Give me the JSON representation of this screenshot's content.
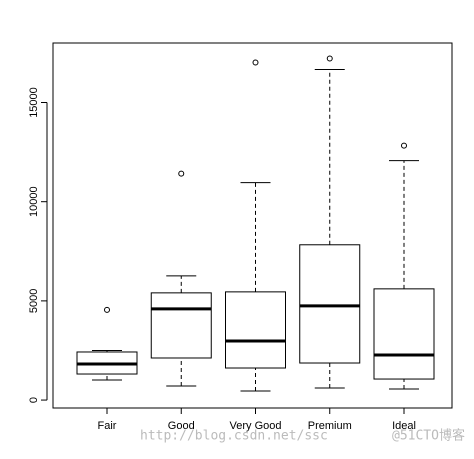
{
  "chart_data": {
    "type": "boxplot",
    "categories": [
      "Fair",
      "Good",
      "Very Good",
      "Premium",
      "Ideal"
    ],
    "boxes": [
      {
        "min": 1010,
        "q1": 1313,
        "median": 1818,
        "q3": 2424,
        "max": 2500,
        "outliers": [
          4545
        ]
      },
      {
        "min": 707,
        "q1": 2121,
        "median": 4596,
        "q3": 5404,
        "max": 6262,
        "outliers": [
          11413
        ]
      },
      {
        "min": 455,
        "q1": 1616,
        "median": 2980,
        "q3": 5454,
        "max": 10959,
        "outliers": [
          17019
        ]
      },
      {
        "min": 606,
        "q1": 1868,
        "median": 4747,
        "q3": 7828,
        "max": 16665,
        "outliers": [
          17220
        ]
      },
      {
        "min": 556,
        "q1": 1060,
        "median": 2272,
        "q3": 5606,
        "max": 12070,
        "outliers": [
          12827
        ]
      }
    ],
    "color": "#000000",
    "ylim": [
      -400,
      18000
    ],
    "yticks": [
      0,
      5000,
      10000,
      15000
    ],
    "watermark": [
      "http://blog.csdn.net/ssc",
      "@51CTO博客"
    ]
  }
}
